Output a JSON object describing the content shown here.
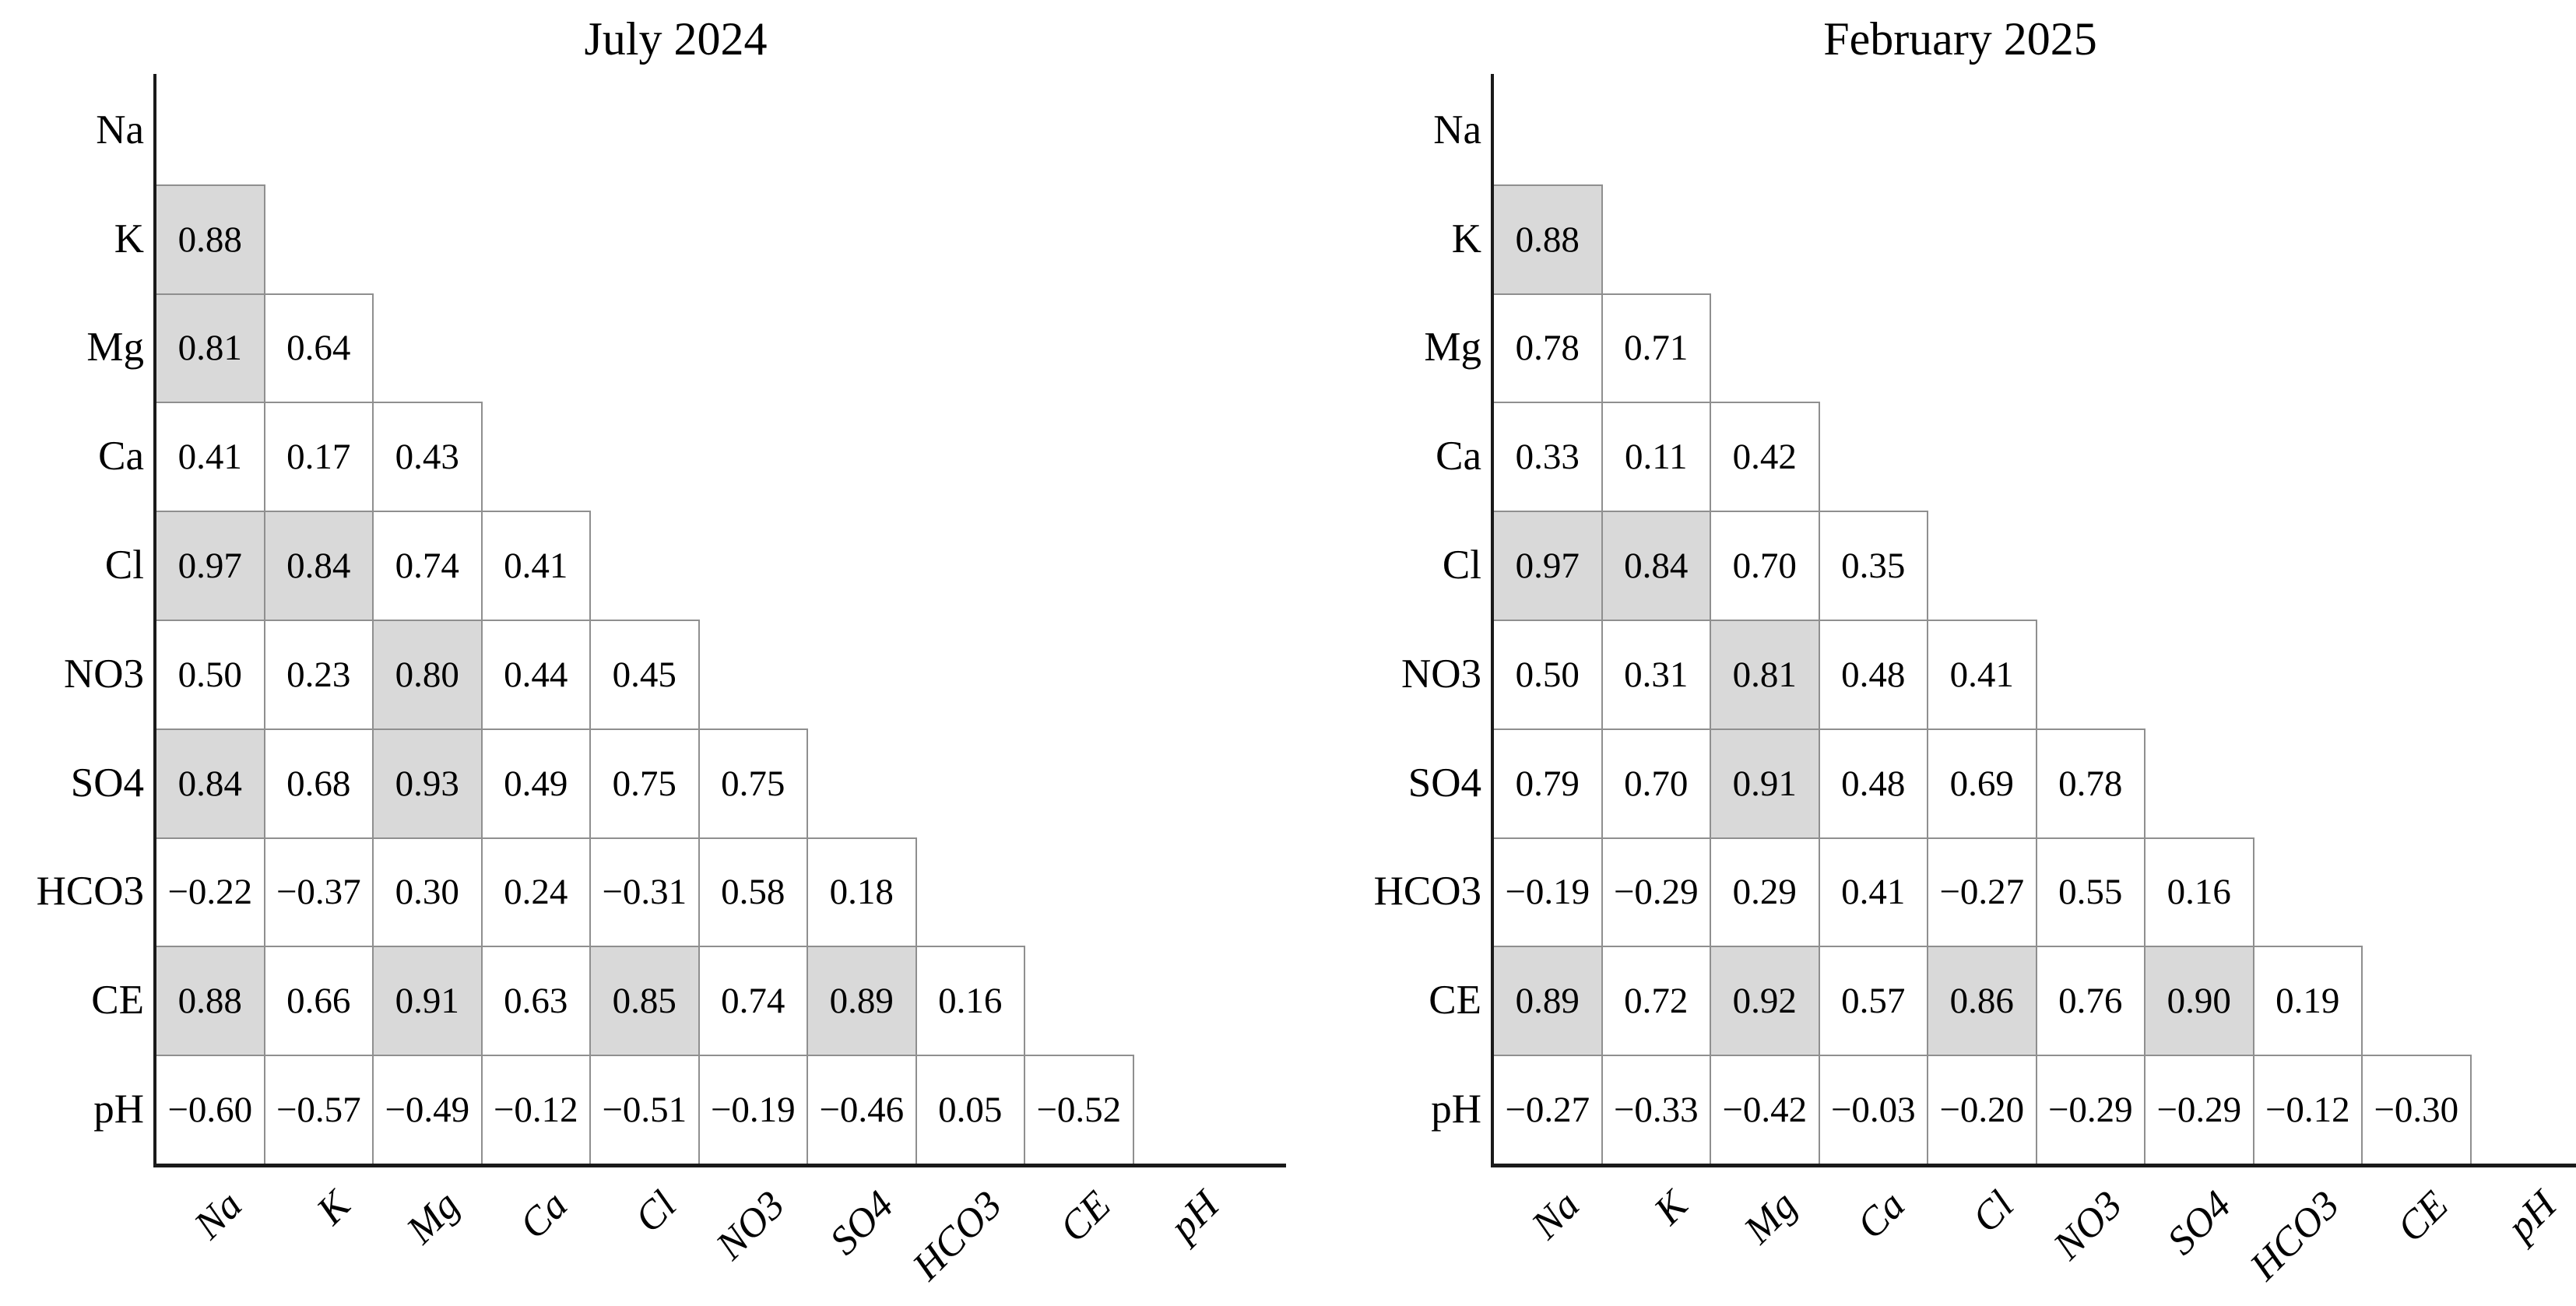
{
  "figure": {
    "background": "#ffffff",
    "variables": [
      "Na",
      "K",
      "Mg",
      "Ca",
      "Cl",
      "NO3",
      "SO4",
      "HCO3",
      "CE",
      "pH"
    ]
  },
  "colors": {
    "cell_shade": "#d9d9d9",
    "grid_line": "#8f8f8f",
    "axis_line": "#1a1a1a",
    "text": "#000000"
  },
  "chart_data": [
    {
      "type": "heatmap",
      "title": "July 2024",
      "x_labels": [
        "Na",
        "K",
        "Mg",
        "Ca",
        "Cl",
        "NO3",
        "SO4",
        "HCO3",
        "CE",
        "pH"
      ],
      "y_labels": [
        "Na",
        "K",
        "Mg",
        "Ca",
        "Cl",
        "NO3",
        "SO4",
        "HCO3",
        "CE",
        "pH"
      ],
      "layout": {
        "triangle": "lower",
        "diagonal_shown": false,
        "shading_rule": "cells ≥ 0.80 shaded"
      },
      "rows": [
        {
          "label": "Na",
          "values": [],
          "shaded": []
        },
        {
          "label": "K",
          "values": [
            "0.88"
          ],
          "shaded": [
            true
          ]
        },
        {
          "label": "Mg",
          "values": [
            "0.81",
            "0.64"
          ],
          "shaded": [
            true,
            false
          ]
        },
        {
          "label": "Ca",
          "values": [
            "0.41",
            "0.17",
            "0.43"
          ],
          "shaded": [
            false,
            false,
            false
          ]
        },
        {
          "label": "Cl",
          "values": [
            "0.97",
            "0.84",
            "0.74",
            "0.41"
          ],
          "shaded": [
            true,
            true,
            false,
            false
          ]
        },
        {
          "label": "NO3",
          "values": [
            "0.50",
            "0.23",
            "0.80",
            "0.44",
            "0.45"
          ],
          "shaded": [
            false,
            false,
            true,
            false,
            false
          ]
        },
        {
          "label": "SO4",
          "values": [
            "0.84",
            "0.68",
            "0.93",
            "0.49",
            "0.75",
            "0.75"
          ],
          "shaded": [
            true,
            false,
            true,
            false,
            false,
            false
          ]
        },
        {
          "label": "HCO3",
          "values": [
            "−0.22",
            "−0.37",
            "0.30",
            "0.24",
            "−0.31",
            "0.58",
            "0.18"
          ],
          "shaded": [
            false,
            false,
            false,
            false,
            false,
            false,
            false
          ]
        },
        {
          "label": "CE",
          "values": [
            "0.88",
            "0.66",
            "0.91",
            "0.63",
            "0.85",
            "0.74",
            "0.89",
            "0.16"
          ],
          "shaded": [
            true,
            false,
            true,
            false,
            true,
            false,
            true,
            false
          ]
        },
        {
          "label": "pH",
          "values": [
            "−0.60",
            "−0.57",
            "−0.49",
            "−0.12",
            "−0.51",
            "−0.19",
            "−0.46",
            "0.05",
            "−0.52"
          ],
          "shaded": [
            false,
            false,
            false,
            false,
            false,
            false,
            false,
            false,
            false
          ]
        }
      ]
    },
    {
      "type": "heatmap",
      "title": "February 2025",
      "x_labels": [
        "Na",
        "K",
        "Mg",
        "Ca",
        "Cl",
        "NO3",
        "SO4",
        "HCO3",
        "CE",
        "pH"
      ],
      "y_labels": [
        "Na",
        "K",
        "Mg",
        "Ca",
        "Cl",
        "NO3",
        "SO4",
        "HCO3",
        "CE",
        "pH"
      ],
      "layout": {
        "triangle": "lower",
        "diagonal_shown": false,
        "shading_rule": "cells ≥ 0.80 shaded"
      },
      "rows": [
        {
          "label": "Na",
          "values": [],
          "shaded": []
        },
        {
          "label": "K",
          "values": [
            "0.88"
          ],
          "shaded": [
            true
          ]
        },
        {
          "label": "Mg",
          "values": [
            "0.78",
            "0.71"
          ],
          "shaded": [
            false,
            false
          ]
        },
        {
          "label": "Ca",
          "values": [
            "0.33",
            "0.11",
            "0.42"
          ],
          "shaded": [
            false,
            false,
            false
          ]
        },
        {
          "label": "Cl",
          "values": [
            "0.97",
            "0.84",
            "0.70",
            "0.35"
          ],
          "shaded": [
            true,
            true,
            false,
            false
          ]
        },
        {
          "label": "NO3",
          "values": [
            "0.50",
            "0.31",
            "0.81",
            "0.48",
            "0.41"
          ],
          "shaded": [
            false,
            false,
            true,
            false,
            false
          ]
        },
        {
          "label": "SO4",
          "values": [
            "0.79",
            "0.70",
            "0.91",
            "0.48",
            "0.69",
            "0.78"
          ],
          "shaded": [
            false,
            false,
            true,
            false,
            false,
            false
          ]
        },
        {
          "label": "HCO3",
          "values": [
            "−0.19",
            "−0.29",
            "0.29",
            "0.41",
            "−0.27",
            "0.55",
            "0.16"
          ],
          "shaded": [
            false,
            false,
            false,
            false,
            false,
            false,
            false
          ]
        },
        {
          "label": "CE",
          "values": [
            "0.89",
            "0.72",
            "0.92",
            "0.57",
            "0.86",
            "0.76",
            "0.90",
            "0.19"
          ],
          "shaded": [
            true,
            false,
            true,
            false,
            true,
            false,
            true,
            false
          ]
        },
        {
          "label": "pH",
          "values": [
            "−0.27",
            "−0.33",
            "−0.42",
            "−0.03",
            "−0.20",
            "−0.29",
            "−0.29",
            "−0.12",
            "−0.30"
          ],
          "shaded": [
            false,
            false,
            false,
            false,
            false,
            false,
            false,
            false,
            false
          ]
        }
      ]
    }
  ]
}
